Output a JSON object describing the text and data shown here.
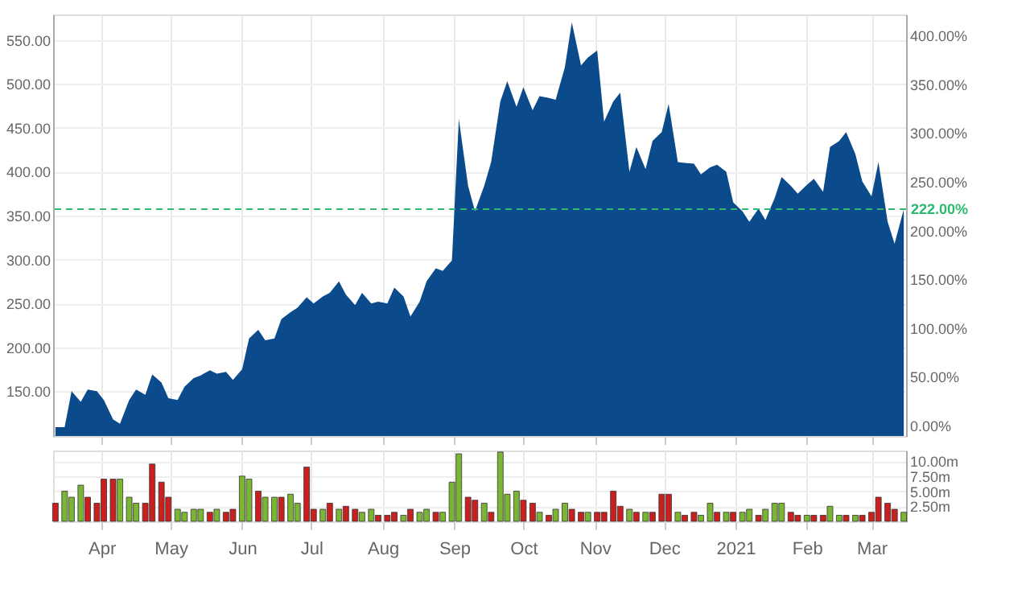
{
  "chart_data": [
    {
      "type": "area",
      "grid": true,
      "tick_labels": "y",
      "x": [
        "2020-03-12",
        "2020-03-16",
        "2020-03-19",
        "2020-03-23",
        "2020-03-26",
        "2020-03-30",
        "2020-04-02",
        "2020-04-06",
        "2020-04-09",
        "2020-04-13",
        "2020-04-16",
        "2020-04-20",
        "2020-04-23",
        "2020-04-27",
        "2020-04-30",
        "2020-05-04",
        "2020-05-07",
        "2020-05-11",
        "2020-05-14",
        "2020-05-18",
        "2020-05-21",
        "2020-05-25",
        "2020-05-28",
        "2020-06-01",
        "2020-06-04",
        "2020-06-08",
        "2020-06-11",
        "2020-06-15",
        "2020-06-18",
        "2020-06-22",
        "2020-06-25",
        "2020-06-29",
        "2020-07-02",
        "2020-07-06",
        "2020-07-09",
        "2020-07-13",
        "2020-07-16",
        "2020-07-20",
        "2020-07-23",
        "2020-07-27",
        "2020-07-30",
        "2020-08-03",
        "2020-08-06",
        "2020-08-10",
        "2020-08-13",
        "2020-08-17",
        "2020-08-20",
        "2020-08-24",
        "2020-08-27",
        "2020-08-31",
        "2020-09-03",
        "2020-09-07",
        "2020-09-10",
        "2020-09-14",
        "2020-09-17",
        "2020-09-21",
        "2020-09-24",
        "2020-09-28",
        "2020-10-01",
        "2020-10-05",
        "2020-10-08",
        "2020-10-12",
        "2020-10-15",
        "2020-10-19",
        "2020-10-22",
        "2020-10-26",
        "2020-10-29",
        "2020-11-02",
        "2020-11-05",
        "2020-11-09",
        "2020-11-12",
        "2020-11-16",
        "2020-11-19",
        "2020-11-23",
        "2020-11-26",
        "2020-11-30",
        "2020-12-03",
        "2020-12-07",
        "2020-12-10",
        "2020-12-14",
        "2020-12-17",
        "2020-12-21",
        "2020-12-24",
        "2020-12-28",
        "2020-12-31",
        "2021-01-04",
        "2021-01-07",
        "2021-01-11",
        "2021-01-14",
        "2021-01-18",
        "2021-01-21",
        "2021-01-25",
        "2021-01-28",
        "2021-02-01",
        "2021-02-04",
        "2021-02-08",
        "2021-02-11",
        "2021-02-15",
        "2021-02-18",
        "2021-02-22",
        "2021-02-25",
        "2021-03-01",
        "2021-03-04",
        "2021-03-08",
        "2021-03-11",
        "2021-03-15"
      ],
      "series": [
        {
          "color": "#0b4a8b",
          "values": [
            109,
            109,
            150,
            138,
            152,
            150,
            140,
            118,
            113,
            140,
            152,
            146,
            169,
            160,
            142,
            140,
            155,
            165,
            168,
            174,
            170,
            172,
            163,
            175,
            210,
            220,
            208,
            210,
            232,
            240,
            245,
            257,
            250,
            258,
            262,
            275,
            260,
            248,
            262,
            250,
            252,
            250,
            268,
            258,
            235,
            252,
            275,
            290,
            287,
            299,
            460,
            384,
            355,
            384,
            411,
            480,
            503,
            474,
            496,
            470,
            486,
            484,
            482,
            519,
            570,
            521,
            530,
            538,
            457,
            480,
            490,
            400,
            428,
            403,
            435,
            445,
            477,
            411,
            410,
            409,
            397,
            405,
            408,
            400,
            365,
            355,
            343,
            358,
            345,
            370,
            394,
            384,
            375,
            385,
            392,
            377,
            428,
            435,
            445,
            420,
            389,
            372,
            411,
            343,
            318,
            357
          ]
        }
      ],
      "xlim": [
        "2020-03-11",
        "2021-03-16"
      ],
      "xticks": [
        {
          "value": "2020-04-01",
          "label": null
        },
        {
          "value": "2020-05-01",
          "label": null
        },
        {
          "value": "2020-06-01",
          "label": null
        },
        {
          "value": "2020-07-01",
          "label": null
        },
        {
          "value": "2020-08-01",
          "label": null
        },
        {
          "value": "2020-09-01",
          "label": null
        },
        {
          "value": "2020-10-01",
          "label": null
        },
        {
          "value": "2020-11-01",
          "label": null
        },
        {
          "value": "2020-12-01",
          "label": null
        },
        {
          "value": "2021-01-01",
          "label": null
        },
        {
          "value": "2021-02-01",
          "label": null
        },
        {
          "value": "2021-03-01",
          "label": null
        }
      ],
      "ylim": [
        99,
        579
      ],
      "yticks": [
        {
          "value": 150,
          "label": "150.00"
        },
        {
          "value": 200,
          "label": "200.00"
        },
        {
          "value": 250,
          "label": "250.00"
        },
        {
          "value": 300,
          "label": "300.00"
        },
        {
          "value": 350,
          "label": "350.00"
        },
        {
          "value": 400,
          "label": "400.00"
        },
        {
          "value": 450,
          "label": "450.00"
        },
        {
          "value": 500,
          "label": "500.00"
        },
        {
          "value": 550,
          "label": "550.00"
        }
      ],
      "y2lim": [
        -10.8,
        421.6
      ],
      "y2ticks": [
        {
          "value": 0,
          "label": "0.00%"
        },
        {
          "value": 50,
          "label": "50.00%"
        },
        {
          "value": 100,
          "label": "100.00%"
        },
        {
          "value": 150,
          "label": "150.00%"
        },
        {
          "value": 200,
          "label": "200.00%"
        },
        {
          "value": 250,
          "label": "250.00%"
        },
        {
          "value": 300,
          "label": "300.00%"
        },
        {
          "value": 350,
          "label": "350.00%"
        },
        {
          "value": 400,
          "label": "400.00%"
        }
      ],
      "ref_lines": [
        {
          "axis": "y2",
          "value": 222,
          "label": "222.00%",
          "color": "#2eb872",
          "line_style": "dashed"
        }
      ]
    },
    {
      "type": "bar",
      "grid": true,
      "x": [
        "2020-03-12",
        "2020-03-16",
        "2020-03-19",
        "2020-03-23",
        "2020-03-26",
        "2020-03-30",
        "2020-04-02",
        "2020-04-06",
        "2020-04-09",
        "2020-04-13",
        "2020-04-16",
        "2020-04-20",
        "2020-04-23",
        "2020-04-27",
        "2020-04-30",
        "2020-05-04",
        "2020-05-07",
        "2020-05-11",
        "2020-05-14",
        "2020-05-18",
        "2020-05-21",
        "2020-05-25",
        "2020-05-28",
        "2020-06-01",
        "2020-06-04",
        "2020-06-08",
        "2020-06-11",
        "2020-06-15",
        "2020-06-18",
        "2020-06-22",
        "2020-06-25",
        "2020-06-29",
        "2020-07-02",
        "2020-07-06",
        "2020-07-09",
        "2020-07-13",
        "2020-07-16",
        "2020-07-20",
        "2020-07-23",
        "2020-07-27",
        "2020-07-30",
        "2020-08-03",
        "2020-08-06",
        "2020-08-10",
        "2020-08-13",
        "2020-08-17",
        "2020-08-20",
        "2020-08-24",
        "2020-08-27",
        "2020-08-31",
        "2020-09-03",
        "2020-09-07",
        "2020-09-10",
        "2020-09-14",
        "2020-09-17",
        "2020-09-21",
        "2020-09-24",
        "2020-09-28",
        "2020-10-01",
        "2020-10-05",
        "2020-10-08",
        "2020-10-12",
        "2020-10-15",
        "2020-10-19",
        "2020-10-22",
        "2020-10-26",
        "2020-10-29",
        "2020-11-02",
        "2020-11-05",
        "2020-11-09",
        "2020-11-12",
        "2020-11-16",
        "2020-11-19",
        "2020-11-23",
        "2020-11-26",
        "2020-11-30",
        "2020-12-03",
        "2020-12-07",
        "2020-12-10",
        "2020-12-14",
        "2020-12-17",
        "2020-12-21",
        "2020-12-24",
        "2020-12-28",
        "2020-12-31",
        "2021-01-04",
        "2021-01-07",
        "2021-01-11",
        "2021-01-14",
        "2021-01-18",
        "2021-01-21",
        "2021-01-25",
        "2021-01-28",
        "2021-02-01",
        "2021-02-04",
        "2021-02-08",
        "2021-02-11",
        "2021-02-15",
        "2021-02-18",
        "2021-02-22",
        "2021-02-25",
        "2021-03-01",
        "2021-03-04",
        "2021-03-08",
        "2021-03-11",
        "2021-03-15"
      ],
      "values": [
        3,
        5,
        4,
        6,
        4,
        3,
        7,
        7,
        7,
        4,
        3,
        3,
        9.5,
        6.5,
        4,
        2,
        1.5,
        2,
        2,
        1.5,
        2,
        1.5,
        2,
        7.5,
        7,
        5,
        4,
        4,
        4,
        4.5,
        3,
        9,
        2,
        2,
        3,
        2,
        2.5,
        2,
        1.5,
        2,
        1,
        1,
        1.5,
        1,
        2,
        1.5,
        2,
        1.5,
        1.5,
        6.5,
        11.2,
        4,
        3.5,
        3,
        1.5,
        11.5,
        4.5,
        5,
        3.5,
        3,
        1.5,
        1,
        2,
        3,
        2,
        1.5,
        1.5,
        1.5,
        1.5,
        5,
        2.5,
        2,
        1.5,
        1.5,
        1.5,
        4.5,
        4.5,
        1.5,
        1,
        1.5,
        1,
        3,
        1.5,
        1.5,
        1.5,
        1.5,
        2,
        1,
        2,
        3,
        3,
        1.5,
        1,
        1,
        1,
        1,
        2.5,
        1,
        1,
        1,
        1,
        1.5,
        4,
        3,
        2,
        1.5
      ],
      "colors": [
        "#c8201f",
        "#7ab534",
        "#7ab534",
        "#7ab534",
        "#c8201f",
        "#c8201f",
        "#c8201f",
        "#c8201f",
        "#7ab534",
        "#7ab534",
        "#7ab534",
        "#c8201f",
        "#c8201f",
        "#c8201f",
        "#c8201f",
        "#7ab534",
        "#7ab534",
        "#7ab534",
        "#7ab534",
        "#c8201f",
        "#7ab534",
        "#c8201f",
        "#c8201f",
        "#7ab534",
        "#7ab534",
        "#c8201f",
        "#7ab534",
        "#7ab534",
        "#c8201f",
        "#7ab534",
        "#7ab534",
        "#c8201f",
        "#c8201f",
        "#7ab534",
        "#c8201f",
        "#7ab534",
        "#c8201f",
        "#c8201f",
        "#7ab534",
        "#7ab534",
        "#c8201f",
        "#c8201f",
        "#c8201f",
        "#7ab534",
        "#c8201f",
        "#7ab534",
        "#7ab534",
        "#c8201f",
        "#7ab534",
        "#7ab534",
        "#7ab534",
        "#c8201f",
        "#c8201f",
        "#7ab534",
        "#c8201f",
        "#7ab534",
        "#7ab534",
        "#7ab534",
        "#c8201f",
        "#c8201f",
        "#7ab534",
        "#c8201f",
        "#7ab534",
        "#7ab534",
        "#c8201f",
        "#c8201f",
        "#7ab534",
        "#c8201f",
        "#c8201f",
        "#c8201f",
        "#c8201f",
        "#7ab534",
        "#c8201f",
        "#7ab534",
        "#c8201f",
        "#c8201f",
        "#c8201f",
        "#7ab534",
        "#c8201f",
        "#c8201f",
        "#7ab534",
        "#7ab534",
        "#c8201f",
        "#7ab534",
        "#c8201f",
        "#7ab534",
        "#7ab534",
        "#c8201f",
        "#7ab534",
        "#7ab534",
        "#7ab534",
        "#c8201f",
        "#c8201f",
        "#7ab534",
        "#c8201f",
        "#c8201f",
        "#7ab534",
        "#7ab534",
        "#c8201f",
        "#7ab534",
        "#c8201f",
        "#c8201f",
        "#c8201f",
        "#c8201f",
        "#c8201f",
        "#7ab534"
      ],
      "xlim": [
        "2020-03-11",
        "2021-03-16"
      ],
      "xticks": [
        {
          "value": "2020-04-01",
          "label": "Apr"
        },
        {
          "value": "2020-05-01",
          "label": "May"
        },
        {
          "value": "2020-06-01",
          "label": "Jun"
        },
        {
          "value": "2020-07-01",
          "label": "Jul"
        },
        {
          "value": "2020-08-01",
          "label": "Aug"
        },
        {
          "value": "2020-09-01",
          "label": "Sep"
        },
        {
          "value": "2020-10-01",
          "label": "Oct"
        },
        {
          "value": "2020-11-01",
          "label": "Nov"
        },
        {
          "value": "2020-12-01",
          "label": "Dec"
        },
        {
          "value": "2021-01-01",
          "label": "2021"
        },
        {
          "value": "2021-02-01",
          "label": "Feb"
        },
        {
          "value": "2021-03-01",
          "label": "Mar"
        }
      ],
      "ylim": [
        0,
        11.75
      ],
      "yticks": [
        {
          "value": 2.5,
          "label": "2.50m"
        },
        {
          "value": 5,
          "label": "5.00m"
        },
        {
          "value": 7.5,
          "label": "7.50m"
        },
        {
          "value": 10,
          "label": "10.00m"
        }
      ]
    }
  ]
}
